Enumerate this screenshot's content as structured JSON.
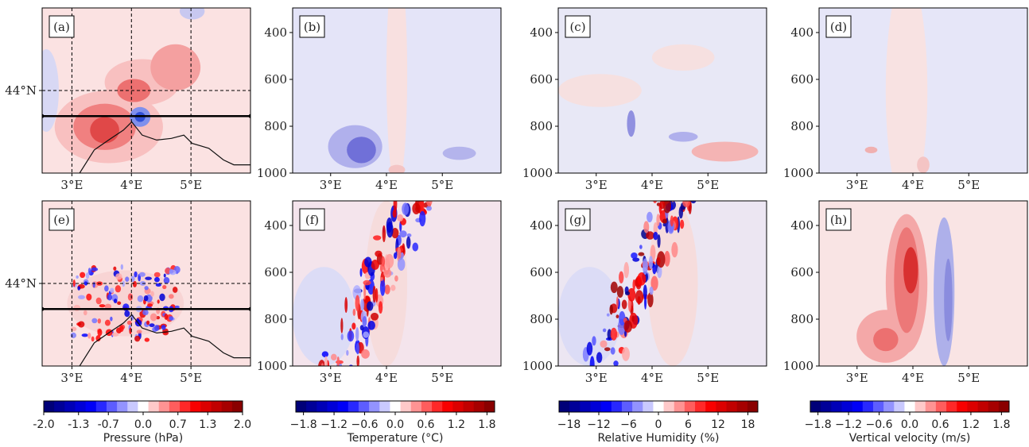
{
  "chart_data": [
    {
      "type": "map",
      "label": "(a)",
      "xlim": [
        2.5,
        6.0
      ],
      "xticks": [
        {
          "value": 3,
          "label": "3°E"
        },
        {
          "value": 4,
          "label": "4°E"
        },
        {
          "value": 5,
          "label": "5°E"
        }
      ],
      "ylim": [
        43.3,
        44.7
      ],
      "yticks": [
        {
          "value": 44,
          "label": "44°N"
        }
      ],
      "grid": true
    },
    {
      "type": "cross-section",
      "label": "(b)",
      "xlim": [
        2.32,
        6.05
      ],
      "xticks": [
        {
          "value": 3,
          "label": "3°E"
        },
        {
          "value": 4,
          "label": "4°E"
        },
        {
          "value": 5,
          "label": "5°E"
        }
      ],
      "ylim": [
        1000,
        295
      ],
      "yticks": [
        400,
        600,
        800,
        1000
      ],
      "grid": false
    },
    {
      "type": "cross-section",
      "label": "(c)",
      "xlim": [
        2.32,
        6.05
      ],
      "xticks": [
        {
          "value": 3,
          "label": "3°E"
        },
        {
          "value": 4,
          "label": "4°E"
        },
        {
          "value": 5,
          "label": "5°E"
        }
      ],
      "ylim": [
        1000,
        295
      ],
      "yticks": [
        400,
        600,
        800,
        1000
      ],
      "grid": false
    },
    {
      "type": "cross-section",
      "label": "(d)",
      "xlim": [
        2.32,
        6.05
      ],
      "xticks": [
        {
          "value": 3,
          "label": "3°E"
        },
        {
          "value": 4,
          "label": "4°E"
        },
        {
          "value": 5,
          "label": "5°E"
        }
      ],
      "ylim": [
        1000,
        295
      ],
      "yticks": [
        400,
        600,
        800,
        1000
      ],
      "grid": false
    },
    {
      "type": "map",
      "label": "(e)",
      "xlim": [
        2.5,
        6.0
      ],
      "xticks": [
        {
          "value": 3,
          "label": "3°E"
        },
        {
          "value": 4,
          "label": "4°E"
        },
        {
          "value": 5,
          "label": "5°E"
        }
      ],
      "ylim": [
        43.3,
        44.7
      ],
      "yticks": [
        {
          "value": 44,
          "label": "44°N"
        }
      ],
      "grid": true
    },
    {
      "type": "cross-section",
      "label": "(f)",
      "xlim": [
        2.32,
        6.05
      ],
      "xticks": [
        {
          "value": 3,
          "label": "3°E"
        },
        {
          "value": 4,
          "label": "4°E"
        },
        {
          "value": 5,
          "label": "5°E"
        }
      ],
      "ylim": [
        1000,
        295
      ],
      "yticks": [
        400,
        600,
        800,
        1000
      ],
      "grid": false
    },
    {
      "type": "cross-section",
      "label": "(g)",
      "xlim": [
        2.32,
        6.05
      ],
      "xticks": [
        {
          "value": 3,
          "label": "3°E"
        },
        {
          "value": 4,
          "label": "4°E"
        },
        {
          "value": 5,
          "label": "5°E"
        }
      ],
      "ylim": [
        1000,
        295
      ],
      "yticks": [
        400,
        600,
        800,
        1000
      ],
      "grid": false
    },
    {
      "type": "cross-section",
      "label": "(h)",
      "xlim": [
        2.32,
        6.05
      ],
      "xticks": [
        {
          "value": 3,
          "label": "3°E"
        },
        {
          "value": 4,
          "label": "4°E"
        },
        {
          "value": 5,
          "label": "5°E"
        }
      ],
      "ylim": [
        1000,
        295
      ],
      "yticks": [
        400,
        600,
        800,
        1000
      ],
      "grid": false
    }
  ],
  "colorbars": [
    {
      "label": "Pressure (hPa)",
      "lim": [
        -2,
        2
      ],
      "ticks": [
        {
          "value": -2,
          "label": "-2.0"
        },
        -1.3,
        -0.7,
        {
          "value": 0,
          "label": "0.0"
        },
        0.7,
        1.3,
        {
          "value": 2,
          "label": "2.0"
        }
      ]
    },
    {
      "label": "Temperature (°C)",
      "lim": [
        -1.95,
        1.95
      ],
      "ticks": [
        {
          "value": -1.8,
          "label": "−1.8"
        },
        {
          "value": -1.2,
          "label": "−1.2"
        },
        {
          "value": -0.6,
          "label": "−0.6"
        },
        {
          "value": 0,
          "label": "0.0"
        },
        0.6,
        1.2,
        1.8
      ]
    },
    {
      "label": "Relative Humidity (%)",
      "lim": [
        -20,
        20
      ],
      "ticks": [
        {
          "value": -18,
          "label": "−18"
        },
        {
          "value": -12,
          "label": "−12"
        },
        {
          "value": -6,
          "label": "−6"
        },
        0,
        6,
        12,
        18
      ]
    },
    {
      "label": "Vertical velocity (m/s)",
      "lim": [
        -1.95,
        1.95
      ],
      "ticks": [
        {
          "value": -1.8,
          "label": "−1.8"
        },
        {
          "value": -1.2,
          "label": "−1.2"
        },
        {
          "value": -0.6,
          "label": "−0.6"
        },
        {
          "value": 0,
          "label": "0.0"
        },
        0.6,
        1.2,
        1.8
      ]
    }
  ]
}
